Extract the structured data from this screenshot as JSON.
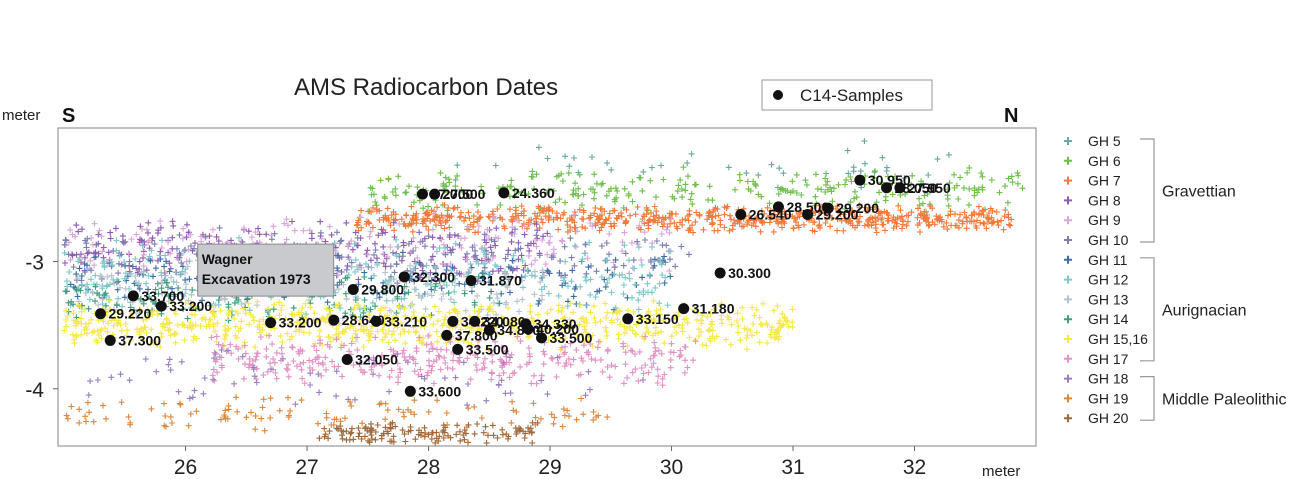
{
  "chart_data": {
    "type": "scatter",
    "title": "AMS Radiocarbon Dates",
    "xlabel": "meter",
    "ylabel": "meter",
    "xlim": [
      24.95,
      33.0
    ],
    "ylim": [
      -4.45,
      -1.95
    ],
    "xticks": [
      26,
      27,
      28,
      29,
      30,
      31,
      32
    ],
    "yticks": [
      -3,
      -4
    ],
    "direction_left": "S",
    "direction_right": "N",
    "annotation": {
      "line1": "Wagner",
      "line2": "Excavation 1973",
      "x": 26.1,
      "y": -3.02
    },
    "c14_legend": "C14-Samples",
    "c14_samples": [
      {
        "x": 25.8,
        "y": -3.35,
        "label": "33.200"
      },
      {
        "x": 25.57,
        "y": -3.27,
        "label": "33.700"
      },
      {
        "x": 25.3,
        "y": -3.41,
        "label": "29.220"
      },
      {
        "x": 25.38,
        "y": -3.62,
        "label": "37.300"
      },
      {
        "x": 26.7,
        "y": -3.48,
        "label": "33.200"
      },
      {
        "x": 27.22,
        "y": -3.46,
        "label": "28.640"
      },
      {
        "x": 27.33,
        "y": -3.77,
        "label": "32.050"
      },
      {
        "x": 27.38,
        "y": -3.22,
        "label": "29.800"
      },
      {
        "x": 27.57,
        "y": -3.47,
        "label": "33.210"
      },
      {
        "x": 27.8,
        "y": -3.12,
        "label": "32.300"
      },
      {
        "x": 27.85,
        "y": -4.02,
        "label": "33.600"
      },
      {
        "x": 27.95,
        "y": -2.47,
        "label": "27.000"
      },
      {
        "x": 28.05,
        "y": -2.47,
        "label": "27.500"
      },
      {
        "x": 28.15,
        "y": -3.58,
        "label": "37.800"
      },
      {
        "x": 28.2,
        "y": -3.47,
        "label": "34.220"
      },
      {
        "x": 28.24,
        "y": -3.69,
        "label": "33.500"
      },
      {
        "x": 28.35,
        "y": -3.15,
        "label": "31.870"
      },
      {
        "x": 28.38,
        "y": -3.47,
        "label": "34.080"
      },
      {
        "x": 28.5,
        "y": -3.54,
        "label": "34.800"
      },
      {
        "x": 28.62,
        "y": -2.46,
        "label": "24.360"
      },
      {
        "x": 28.8,
        "y": -3.49,
        "label": "34.330"
      },
      {
        "x": 28.82,
        "y": -3.53,
        "label": "40.200"
      },
      {
        "x": 28.93,
        "y": -3.6,
        "label": "33.500"
      },
      {
        "x": 29.64,
        "y": -3.45,
        "label": "33.150"
      },
      {
        "x": 30.1,
        "y": -3.37,
        "label": "31.180"
      },
      {
        "x": 30.4,
        "y": -3.09,
        "label": "30.300"
      },
      {
        "x": 30.57,
        "y": -2.63,
        "label": "26.540"
      },
      {
        "x": 30.88,
        "y": -2.57,
        "label": "28.500"
      },
      {
        "x": 31.12,
        "y": -2.63,
        "label": "29.200"
      },
      {
        "x": 31.29,
        "y": -2.58,
        "label": "29.200"
      },
      {
        "x": 31.55,
        "y": -2.36,
        "label": "30.950"
      },
      {
        "x": 31.77,
        "y": -2.42,
        "label": "28.050"
      },
      {
        "x": 31.88,
        "y": -2.42,
        "label": "27.950"
      }
    ],
    "series": [
      {
        "name": "GH 5",
        "color": "#6aa7a3",
        "x_range": [
          28.2,
          32.3
        ],
        "y_range": [
          -2.5,
          -2.0
        ],
        "density": 40
      },
      {
        "name": "GH 6",
        "color": "#6fbf4a",
        "x_range": [
          27.5,
          32.9
        ],
        "y_range": [
          -2.62,
          -2.25
        ],
        "density": 260
      },
      {
        "name": "GH 7",
        "color": "#f07a3c",
        "x_range": [
          27.4,
          32.8
        ],
        "y_range": [
          -2.78,
          -2.55
        ],
        "density": 650
      },
      {
        "name": "GH 8",
        "color": "#8e5bb5",
        "x_range": [
          25.0,
          29.0
        ],
        "y_range": [
          -3.2,
          -2.65
        ],
        "density": 280
      },
      {
        "name": "GH 9",
        "color": "#d9a6d9",
        "x_range": [
          25.0,
          30.0
        ],
        "y_range": [
          -3.1,
          -2.6
        ],
        "density": 180
      },
      {
        "name": "GH 10",
        "color": "#7a7fb0",
        "x_range": [
          25.0,
          30.2
        ],
        "y_range": [
          -3.2,
          -2.7
        ],
        "density": 160
      },
      {
        "name": "GH 11",
        "color": "#3b6ea5",
        "x_range": [
          25.0,
          30.0
        ],
        "y_range": [
          -3.4,
          -2.9
        ],
        "density": 150
      },
      {
        "name": "GH 12",
        "color": "#7fc8c8",
        "x_range": [
          25.0,
          30.0
        ],
        "y_range": [
          -3.45,
          -2.8
        ],
        "density": 300
      },
      {
        "name": "GH 13",
        "color": "#b8c4cc",
        "x_range": [
          25.0,
          29.0
        ],
        "y_range": [
          -3.45,
          -3.0
        ],
        "density": 160
      },
      {
        "name": "GH 14",
        "color": "#3f9e7a",
        "x_range": [
          25.0,
          28.6
        ],
        "y_range": [
          -3.5,
          -3.05
        ],
        "density": 120
      },
      {
        "name": "GH 15,16",
        "color": "#f5e84a",
        "x_range": [
          25.0,
          31.0
        ],
        "y_range": [
          -3.7,
          -3.3
        ],
        "density": 700
      },
      {
        "name": "GH 17",
        "color": "#e392c4",
        "x_range": [
          26.2,
          30.2
        ],
        "y_range": [
          -4.0,
          -3.55
        ],
        "density": 320
      },
      {
        "name": "GH 18",
        "color": "#9a7fc2",
        "x_range": [
          25.2,
          29.8
        ],
        "y_range": [
          -4.2,
          -3.6
        ],
        "density": 70
      },
      {
        "name": "GH 19",
        "color": "#e0883a",
        "x_range": [
          25.0,
          29.5
        ],
        "y_range": [
          -4.35,
          -4.05
        ],
        "density": 110
      },
      {
        "name": "GH 20",
        "color": "#a0683a",
        "x_range": [
          27.1,
          28.9
        ],
        "y_range": [
          -4.45,
          -4.25
        ],
        "density": 130
      }
    ],
    "groups": [
      {
        "name": "Gravettian",
        "members": [
          "GH 5",
          "GH 6",
          "GH 7",
          "GH 8",
          "GH 9",
          "GH 10"
        ]
      },
      {
        "name": "Aurignacian",
        "members": [
          "GH 11",
          "GH 12",
          "GH 13",
          "GH 14",
          "GH 15,16",
          "GH 17"
        ]
      },
      {
        "name": "Middle Paleolithic",
        "members": [
          "GH 18",
          "GH 19",
          "GH 20"
        ]
      }
    ],
    "grid": false,
    "legend_position": "right"
  }
}
